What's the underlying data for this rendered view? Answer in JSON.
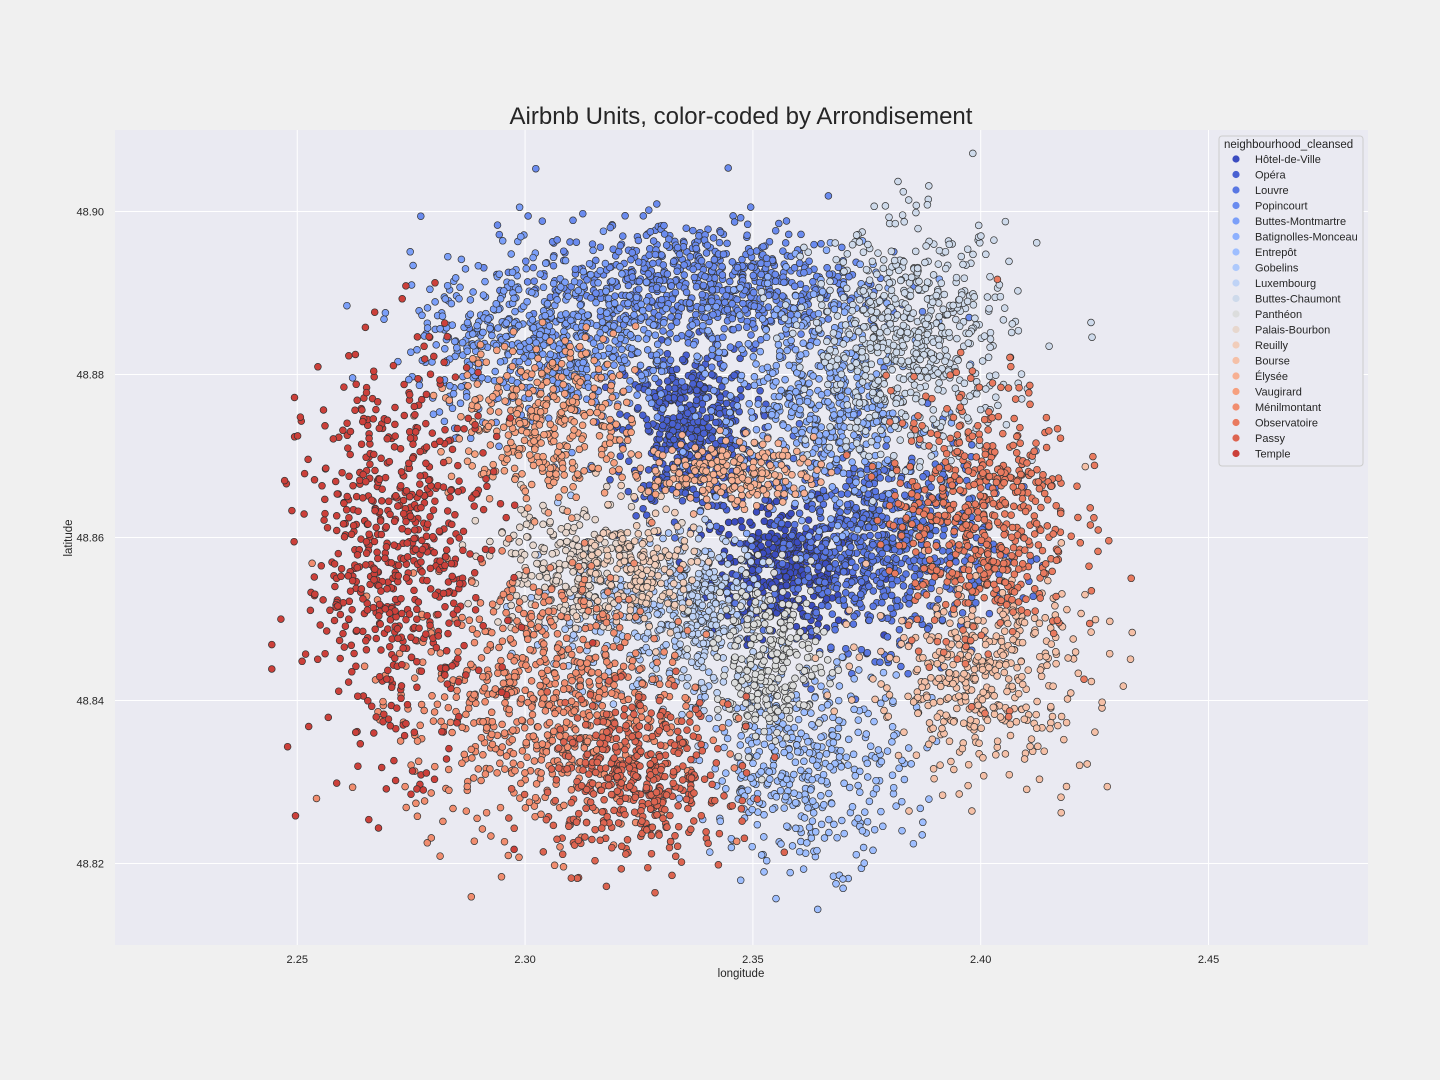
{
  "chart_data": {
    "type": "scatter",
    "title": "Airbnb Units, color-coded by Arrondisement",
    "xlabel": "longitude",
    "ylabel": "latitude",
    "xlim": [
      2.21,
      2.485
    ],
    "ylim": [
      48.81,
      48.91
    ],
    "xticks": [
      2.25,
      2.3,
      2.35,
      2.4,
      2.45
    ],
    "xtick_labels": [
      "2.25",
      "2.30",
      "2.35",
      "2.40",
      "2.45"
    ],
    "yticks": [
      48.82,
      48.84,
      48.86,
      48.88,
      48.9
    ],
    "ytick_labels": [
      "48.82",
      "48.84",
      "48.86",
      "48.88",
      "48.90"
    ],
    "grid": true,
    "legend_title": "neighbourhood_cleansed",
    "legend_placement": "top-right",
    "series": [
      {
        "name": "Hôtel-de-Ville",
        "color": "#3b4cc0",
        "center": [
          2.357,
          48.856
        ],
        "spread": [
          0.008,
          0.004
        ],
        "count": 420
      },
      {
        "name": "Opéra",
        "color": "#4961d2",
        "center": [
          2.336,
          48.873
        ],
        "spread": [
          0.007,
          0.005
        ],
        "count": 480
      },
      {
        "name": "Louvre",
        "color": "#5977e3",
        "center": [
          2.378,
          48.859
        ],
        "spread": [
          0.012,
          0.006
        ],
        "count": 700
      },
      {
        "name": "Popincourt",
        "color": "#6a8bef",
        "center": [
          2.338,
          48.891
        ],
        "spread": [
          0.018,
          0.004
        ],
        "count": 750
      },
      {
        "name": "Buttes-Montmartre",
        "color": "#7b9ff9",
        "center": [
          2.305,
          48.884
        ],
        "spread": [
          0.015,
          0.005
        ],
        "count": 600
      },
      {
        "name": "Batignolles-Monceau",
        "color": "#8db0fe",
        "center": [
          2.365,
          48.877
        ],
        "spread": [
          0.011,
          0.007
        ],
        "count": 520
      },
      {
        "name": "Entrepôt",
        "color": "#9ebeff",
        "center": [
          2.362,
          48.832
        ],
        "spread": [
          0.011,
          0.006
        ],
        "count": 420
      },
      {
        "name": "Gobelins",
        "color": "#aec9fc",
        "center": [
          2.325,
          48.85
        ],
        "spread": [
          0.012,
          0.005
        ],
        "count": 280
      },
      {
        "name": "Luxembourg",
        "color": "#bfd3f6",
        "center": [
          2.34,
          48.851
        ],
        "spread": [
          0.006,
          0.005
        ],
        "count": 240
      },
      {
        "name": "Buttes-Chaumont",
        "color": "#cedaeb",
        "center": [
          2.385,
          48.884
        ],
        "spread": [
          0.011,
          0.007
        ],
        "count": 620
      },
      {
        "name": "Panthéon",
        "color": "#dcdddd",
        "center": [
          2.354,
          48.845
        ],
        "spread": [
          0.006,
          0.005
        ],
        "count": 260
      },
      {
        "name": "Palais-Bourbon",
        "color": "#e7d7ce",
        "center": [
          2.308,
          48.857
        ],
        "spread": [
          0.008,
          0.004
        ],
        "count": 220
      },
      {
        "name": "Reuilly",
        "color": "#f1cdba",
        "center": [
          2.325,
          48.856
        ],
        "spread": [
          0.006,
          0.004
        ],
        "count": 170
      },
      {
        "name": "Bourse",
        "color": "#f5c0a7",
        "center": [
          2.4,
          48.843
        ],
        "spread": [
          0.012,
          0.006
        ],
        "count": 420
      },
      {
        "name": "Élysée",
        "color": "#f7b093",
        "center": [
          2.345,
          48.868
        ],
        "spread": [
          0.009,
          0.002
        ],
        "count": 200
      },
      {
        "name": "Vaugirard",
        "color": "#f6a07f",
        "center": [
          2.305,
          48.874
        ],
        "spread": [
          0.01,
          0.005
        ],
        "count": 360
      },
      {
        "name": "Ménilmontant",
        "color": "#f18d6f",
        "center": [
          2.304,
          48.84
        ],
        "spread": [
          0.015,
          0.008
        ],
        "count": 720
      },
      {
        "name": "Observatoire",
        "color": "#e97a5f",
        "center": [
          2.4,
          48.863
        ],
        "spread": [
          0.01,
          0.008
        ],
        "count": 560
      },
      {
        "name": "Passy",
        "color": "#dd6450",
        "center": [
          2.325,
          48.83
        ],
        "spread": [
          0.01,
          0.005
        ],
        "count": 420
      },
      {
        "name": "Temple",
        "color": "#cc403a",
        "center": [
          2.272,
          48.858
        ],
        "spread": [
          0.01,
          0.012
        ],
        "count": 650
      }
    ]
  }
}
